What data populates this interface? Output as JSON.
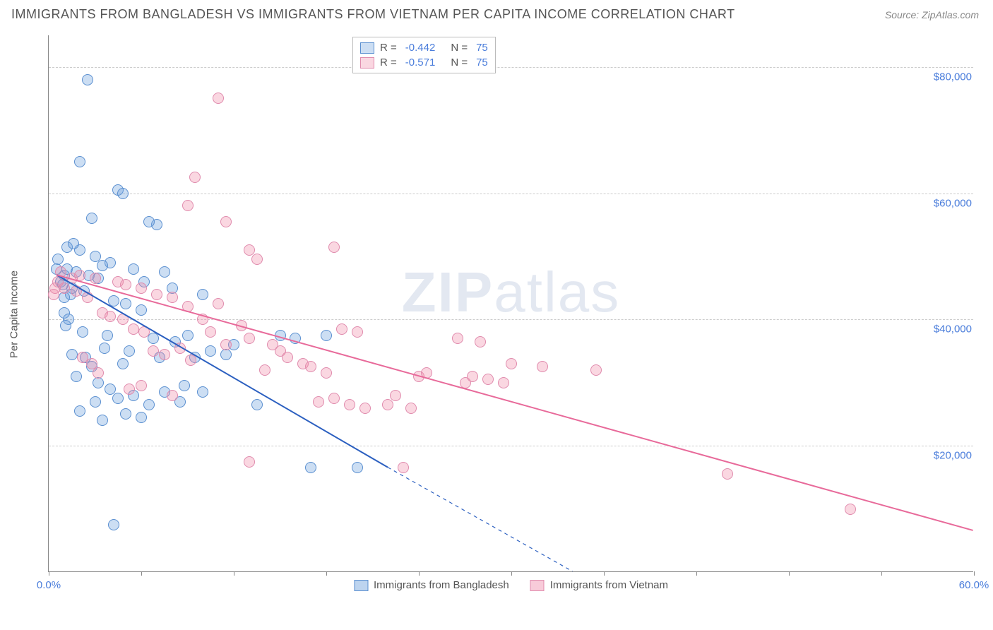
{
  "header": {
    "title": "IMMIGRANTS FROM BANGLADESH VS IMMIGRANTS FROM VIETNAM PER CAPITA INCOME CORRELATION CHART",
    "source_label": "Source: ZipAtlas.com"
  },
  "chart": {
    "type": "scatter",
    "y_axis_label": "Per Capita Income",
    "xlim": [
      0,
      60
    ],
    "ylim": [
      0,
      85000
    ],
    "x_ticks": [
      0,
      6,
      12,
      18,
      24,
      30,
      36,
      42,
      48,
      54,
      60
    ],
    "x_tick_labels_shown": {
      "0": "0.0%",
      "60": "60.0%"
    },
    "y_gridlines": [
      20000,
      40000,
      60000,
      80000
    ],
    "y_tick_labels": {
      "20000": "$20,000",
      "40000": "$40,000",
      "60000": "$60,000",
      "80000": "$80,000"
    },
    "background_color": "#ffffff",
    "grid_color": "#cccccc",
    "axis_color": "#888888",
    "tick_label_color": "#4a7ddb",
    "watermark": "ZIPatlas",
    "series": [
      {
        "name": "Immigrants from Bangladesh",
        "marker_fill": "rgba(108,160,220,0.35)",
        "marker_stroke": "#5a8fd0",
        "marker_radius": 8,
        "line_color": "#2b5fc0",
        "line_width": 2,
        "R": "-0.442",
        "N": "75",
        "trend": {
          "x1": 0.5,
          "y1": 47000,
          "x2": 22,
          "y2": 16500,
          "dash_x2": 34,
          "dash_y2": 0
        },
        "points": [
          [
            2.5,
            78000
          ],
          [
            0.8,
            46000
          ],
          [
            1.0,
            47000
          ],
          [
            1.2,
            48000
          ],
          [
            1.5,
            45000
          ],
          [
            1.4,
            44000
          ],
          [
            2.0,
            65000
          ],
          [
            4.5,
            60500
          ],
          [
            4.8,
            60000
          ],
          [
            7.0,
            55000
          ],
          [
            6.5,
            55500
          ],
          [
            2.8,
            56000
          ],
          [
            1.2,
            51500
          ],
          [
            2.0,
            51000
          ],
          [
            3.0,
            50000
          ],
          [
            4.0,
            49000
          ],
          [
            3.5,
            48500
          ],
          [
            1.0,
            41000
          ],
          [
            1.3,
            40000
          ],
          [
            2.6,
            47000
          ],
          [
            3.2,
            46500
          ],
          [
            5.5,
            48000
          ],
          [
            6.2,
            46000
          ],
          [
            7.5,
            47500
          ],
          [
            8.0,
            45000
          ],
          [
            4.2,
            43000
          ],
          [
            5.0,
            42500
          ],
          [
            6.0,
            41500
          ],
          [
            2.2,
            38000
          ],
          [
            3.8,
            37500
          ],
          [
            1.5,
            34500
          ],
          [
            2.4,
            34000
          ],
          [
            3.6,
            35500
          ],
          [
            5.2,
            35000
          ],
          [
            6.8,
            37000
          ],
          [
            8.2,
            36500
          ],
          [
            9.0,
            37500
          ],
          [
            7.2,
            34000
          ],
          [
            4.8,
            33000
          ],
          [
            2.8,
            32500
          ],
          [
            1.8,
            31000
          ],
          [
            3.2,
            30000
          ],
          [
            4.0,
            29000
          ],
          [
            5.5,
            28000
          ],
          [
            3.0,
            27000
          ],
          [
            4.5,
            27500
          ],
          [
            2.0,
            25500
          ],
          [
            6.5,
            26500
          ],
          [
            5.0,
            25000
          ],
          [
            8.5,
            27000
          ],
          [
            10.0,
            28500
          ],
          [
            9.5,
            34000
          ],
          [
            15.0,
            37500
          ],
          [
            16.0,
            37000
          ],
          [
            18.0,
            37500
          ],
          [
            10.5,
            35000
          ],
          [
            11.5,
            34500
          ],
          [
            10.0,
            44000
          ],
          [
            12.0,
            36000
          ],
          [
            13.5,
            26500
          ],
          [
            17.0,
            16500
          ],
          [
            20.0,
            16500
          ],
          [
            3.5,
            24000
          ],
          [
            6.0,
            24500
          ],
          [
            4.2,
            7500
          ],
          [
            7.5,
            28500
          ],
          [
            8.8,
            29500
          ],
          [
            1.6,
            52000
          ],
          [
            0.6,
            49500
          ],
          [
            0.5,
            48000
          ],
          [
            1.0,
            43500
          ],
          [
            1.8,
            47500
          ],
          [
            2.3,
            44500
          ],
          [
            0.9,
            45500
          ],
          [
            1.1,
            39000
          ]
        ]
      },
      {
        "name": "Immigrants from Vietnam",
        "marker_fill": "rgba(240,140,170,0.35)",
        "marker_stroke": "#e08bad",
        "marker_radius": 8,
        "line_color": "#e86a9a",
        "line_width": 2,
        "R": "-0.571",
        "N": "75",
        "trend": {
          "x1": 0.5,
          "y1": 47000,
          "x2": 60,
          "y2": 6500
        },
        "points": [
          [
            11.0,
            75000
          ],
          [
            9.5,
            62500
          ],
          [
            9.0,
            58000
          ],
          [
            11.5,
            55500
          ],
          [
            13.0,
            51000
          ],
          [
            18.5,
            51500
          ],
          [
            2.0,
            47000
          ],
          [
            3.0,
            46500
          ],
          [
            4.5,
            46000
          ],
          [
            5.0,
            45500
          ],
          [
            6.0,
            45000
          ],
          [
            7.0,
            44000
          ],
          [
            8.0,
            43500
          ],
          [
            9.0,
            42000
          ],
          [
            10.0,
            40000
          ],
          [
            11.0,
            42500
          ],
          [
            13.5,
            49500
          ],
          [
            14.5,
            36000
          ],
          [
            11.5,
            36000
          ],
          [
            10.5,
            38000
          ],
          [
            12.5,
            39000
          ],
          [
            13.0,
            37000
          ],
          [
            15.0,
            35000
          ],
          [
            15.5,
            34000
          ],
          [
            16.5,
            33000
          ],
          [
            14.0,
            32000
          ],
          [
            17.0,
            32500
          ],
          [
            18.0,
            31500
          ],
          [
            19.0,
            38500
          ],
          [
            20.0,
            38000
          ],
          [
            17.5,
            27000
          ],
          [
            18.5,
            27500
          ],
          [
            19.5,
            26500
          ],
          [
            20.5,
            26000
          ],
          [
            22.0,
            26500
          ],
          [
            22.5,
            28000
          ],
          [
            23.5,
            26000
          ],
          [
            24.0,
            31000
          ],
          [
            24.5,
            31500
          ],
          [
            26.5,
            37000
          ],
          [
            28.0,
            36500
          ],
          [
            27.0,
            30000
          ],
          [
            27.5,
            31000
          ],
          [
            28.5,
            30500
          ],
          [
            29.5,
            30000
          ],
          [
            30.0,
            33000
          ],
          [
            32.0,
            32500
          ],
          [
            35.5,
            32000
          ],
          [
            13.0,
            17500
          ],
          [
            23.0,
            16500
          ],
          [
            44.0,
            15500
          ],
          [
            52.0,
            10000
          ],
          [
            0.8,
            47500
          ],
          [
            1.5,
            46500
          ],
          [
            1.0,
            45000
          ],
          [
            1.8,
            44500
          ],
          [
            2.5,
            43500
          ],
          [
            0.6,
            46000
          ],
          [
            0.4,
            45000
          ],
          [
            0.3,
            44000
          ],
          [
            3.5,
            41000
          ],
          [
            4.0,
            40500
          ],
          [
            4.8,
            40000
          ],
          [
            5.5,
            38500
          ],
          [
            6.2,
            38000
          ],
          [
            2.2,
            34000
          ],
          [
            2.8,
            33000
          ],
          [
            3.2,
            31500
          ],
          [
            6.8,
            35000
          ],
          [
            7.5,
            34500
          ],
          [
            8.5,
            35500
          ],
          [
            9.2,
            33500
          ],
          [
            5.2,
            29000
          ],
          [
            6.0,
            29500
          ],
          [
            8.0,
            28000
          ]
        ]
      }
    ],
    "legend_bottom": [
      {
        "label": "Immigrants from Bangladesh",
        "fill": "rgba(108,160,220,0.45)",
        "stroke": "#5a8fd0"
      },
      {
        "label": "Immigrants from Vietnam",
        "fill": "rgba(240,140,170,0.45)",
        "stroke": "#e08bad"
      }
    ]
  }
}
